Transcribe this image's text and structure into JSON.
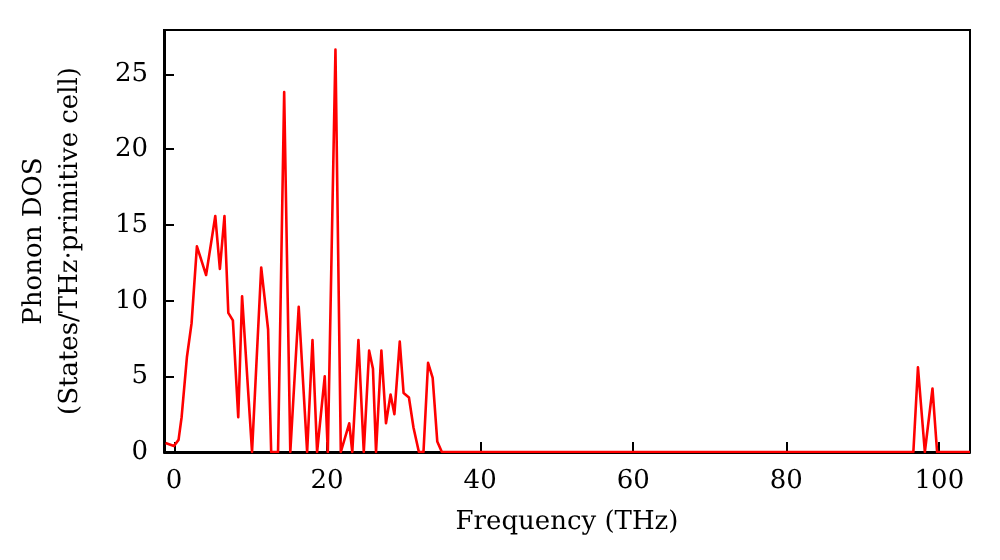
{
  "chart_data": {
    "type": "line",
    "xlabel": "Frequency (THz)",
    "ylabel": "Phonon DOS\n(States/THz·primitive cell)",
    "xlim": [
      -1.3,
      104
    ],
    "xticks": [
      0,
      20,
      40,
      60,
      80,
      100
    ],
    "ylim": [
      0,
      27.9
    ],
    "yticks": [
      0,
      5,
      10,
      15,
      20,
      25
    ],
    "grid": false,
    "marker": "none",
    "line_style": "solid",
    "x": [
      -1.1,
      0.0,
      0.6,
      1.0,
      1.7,
      2.3,
      3.0,
      4.2,
      5.4,
      6.0,
      6.6,
      7.1,
      7.7,
      8.4,
      8.9,
      10.2,
      11.4,
      12.3,
      12.7,
      13.6,
      14.4,
      15.2,
      16.3,
      17.4,
      18.1,
      18.7,
      19.7,
      20.1,
      21.1,
      21.8,
      22.9,
      23.3,
      24.1,
      24.8,
      25.5,
      26.0,
      26.4,
      27.1,
      27.7,
      28.3,
      28.8,
      29.5,
      30.0,
      30.7,
      31.3,
      32.0,
      32.6,
      33.2,
      33.8,
      34.4,
      35.0,
      96.6,
      97.2,
      98.1,
      99.1,
      99.7,
      104
    ],
    "series": [
      {
        "color": "#ff0000",
        "values": [
          0.6,
          0.4,
          0.8,
          2.3,
          6.3,
          8.5,
          13.6,
          11.7,
          15.6,
          12.1,
          15.6,
          9.2,
          8.7,
          2.3,
          10.3,
          0,
          12.2,
          8.1,
          0,
          0,
          23.8,
          0,
          9.6,
          0,
          7.4,
          0,
          5,
          0,
          26.6,
          0,
          1.9,
          0,
          7.4,
          0,
          6.7,
          5.5,
          0,
          6.7,
          1.9,
          3.8,
          2.5,
          7.3,
          3.9,
          3.6,
          1.6,
          0,
          0,
          5.9,
          4.9,
          0.7,
          0,
          0,
          5.6,
          0,
          4.2,
          0,
          0
        ]
      }
    ]
  }
}
